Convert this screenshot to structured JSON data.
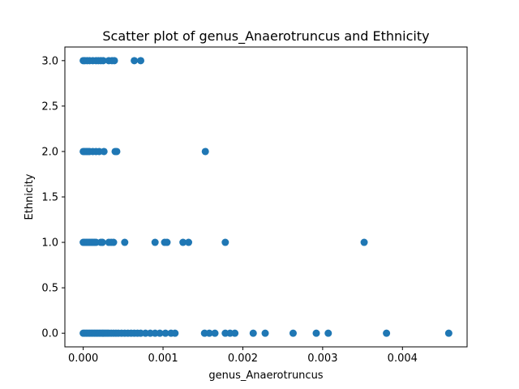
{
  "chart_data": {
    "type": "scatter",
    "title": "Scatter plot of genus_Anaerotruncus and Ethnicity",
    "xlabel": "genus_Anaerotruncus",
    "ylabel": "Ethnicity",
    "xlim": [
      -0.00023,
      0.00481
    ],
    "ylim": [
      -0.15,
      3.15
    ],
    "xticks": [
      0.0,
      0.001,
      0.002,
      0.003,
      0.004
    ],
    "xtick_labels": [
      "0.000",
      "0.001",
      "0.002",
      "0.003",
      "0.004"
    ],
    "yticks": [
      0.0,
      0.5,
      1.0,
      1.5,
      2.0,
      2.5,
      3.0
    ],
    "ytick_labels": [
      "0.0",
      "0.5",
      "1.0",
      "1.5",
      "2.0",
      "2.5",
      "3.0"
    ],
    "grid": false,
    "marker_color": "#1f77b4",
    "series": [
      {
        "x": [
          0.0,
          2e-05,
          4e-05,
          6e-05,
          8e-05,
          0.0001,
          0.00012,
          0.00014,
          0.00016,
          0.00018,
          0.0002,
          0.00022,
          0.00024,
          0.00026,
          0.00028,
          0.0003,
          0.00032,
          0.00035,
          0.00038,
          0.00041,
          0.00044,
          0.00048,
          0.00052,
          0.00056,
          0.0006,
          0.00064,
          0.00068,
          0.00072,
          0.00078,
          0.00084,
          0.0009,
          0.00096,
          0.00103,
          0.0011,
          0.00115,
          0.00152,
          0.00158,
          0.00165,
          0.00178,
          0.00184,
          0.0019,
          0.00213,
          0.00228,
          0.00263,
          0.00292,
          0.00307,
          0.0038,
          0.00458,
          0.0,
          2e-05,
          4e-05,
          6e-05,
          8e-05,
          0.0001,
          0.00012,
          0.00014,
          0.00016,
          0.00022,
          0.00024,
          0.00032,
          0.00035,
          0.00038,
          0.00052,
          0.0009,
          0.00102,
          0.00105,
          0.00125,
          0.00132,
          0.00178,
          0.00352,
          0.0,
          2e-05,
          4e-05,
          6e-05,
          8e-05,
          0.00012,
          0.00016,
          0.0002,
          0.00026,
          0.0004,
          0.00042,
          0.00153,
          0.0,
          2e-05,
          5e-05,
          8e-05,
          0.00012,
          0.00016,
          0.00019,
          0.00022,
          0.00025,
          0.00032,
          0.00036,
          0.00039,
          0.00064,
          0.00072
        ],
        "y": [
          0,
          0,
          0,
          0,
          0,
          0,
          0,
          0,
          0,
          0,
          0,
          0,
          0,
          0,
          0,
          0,
          0,
          0,
          0,
          0,
          0,
          0,
          0,
          0,
          0,
          0,
          0,
          0,
          0,
          0,
          0,
          0,
          0,
          0,
          0,
          0,
          0,
          0,
          0,
          0,
          0,
          0,
          0,
          0,
          0,
          0,
          0,
          0,
          1,
          1,
          1,
          1,
          1,
          1,
          1,
          1,
          1,
          1,
          1,
          1,
          1,
          1,
          1,
          1,
          1,
          1,
          1,
          1,
          1,
          1,
          2,
          2,
          2,
          2,
          2,
          2,
          2,
          2,
          2,
          2,
          2,
          2,
          3,
          3,
          3,
          3,
          3,
          3,
          3,
          3,
          3,
          3,
          3,
          3,
          3,
          3
        ]
      }
    ]
  }
}
